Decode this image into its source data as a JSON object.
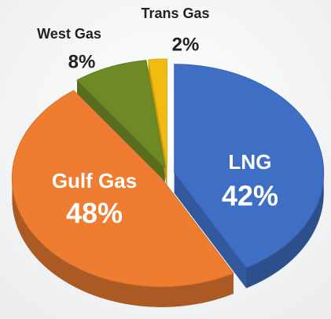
{
  "chart_data": {
    "type": "pie",
    "categories": [
      "LNG",
      "Gulf Gas",
      "West Gas",
      "Trans Gas"
    ],
    "values": [
      42,
      48,
      8,
      2
    ],
    "value_labels": [
      "42%",
      "48%",
      "8%",
      "2%"
    ],
    "colors": [
      "#3f6fc4",
      "#ee7d31",
      "#6e8a25",
      "#f1bb12"
    ]
  }
}
